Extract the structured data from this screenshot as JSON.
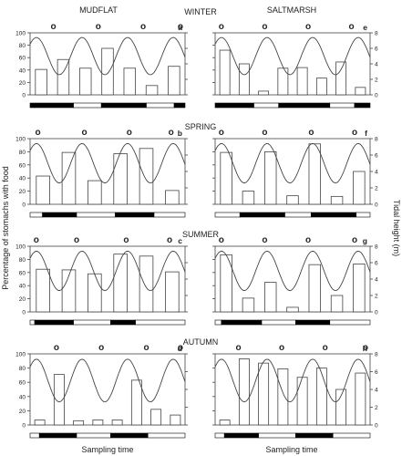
{
  "figure": {
    "column_titles": [
      "MUDFLAT",
      "SALTMARSH"
    ],
    "season_titles": [
      "WINTER",
      "SPRING",
      "SUMMER",
      "AUTUMN"
    ],
    "ylabel_left": "Percentage of stomachs with food",
    "ylabel_right": "Tidal height (m)",
    "xlabel": "Sampling time",
    "marker_symbol": "o",
    "colors": {
      "bar_fill": "#ffffff",
      "stroke": "#444444",
      "night_band": "#000000",
      "day_band": "#ffffff"
    }
  },
  "chart_data": [
    {
      "type": "bar",
      "panel": "a",
      "habitat": "MUDFLAT",
      "season": "WINTER",
      "values": [
        41,
        57,
        43,
        75,
        43,
        15,
        46
      ],
      "ylim": [
        0,
        100
      ],
      "yticks": [
        0,
        20,
        40,
        60,
        80,
        100
      ],
      "tide_ylim": [
        0,
        8
      ],
      "tide_yticks": [
        0,
        2,
        4,
        6,
        8
      ],
      "tide_curve": {
        "cycles": 3.4,
        "phase": 0.14,
        "low_m": 2.6,
        "high_m": 7.4
      },
      "marker_positions": [
        0.15,
        0.44,
        0.73,
        0.97
      ],
      "light_dark_bar": [
        [
          0,
          0.28,
          "dark"
        ],
        [
          0.28,
          0.46,
          "light"
        ],
        [
          0.46,
          0.75,
          "dark"
        ],
        [
          0.75,
          0.93,
          "light"
        ],
        [
          0.93,
          1,
          "dark"
        ]
      ],
      "show_left_ticks": true,
      "show_right_ticks": false
    },
    {
      "type": "bar",
      "panel": "e",
      "habitat": "SALTMARSH",
      "season": "WINTER",
      "values": [
        72,
        50,
        6,
        43,
        44,
        27,
        53,
        12
      ],
      "ylim": [
        0,
        100
      ],
      "yticks": [
        0,
        20,
        40,
        60,
        80,
        100
      ],
      "tide_ylim": [
        0,
        8
      ],
      "tide_yticks": [
        0,
        2,
        4,
        6,
        8
      ],
      "tide_curve": {
        "cycles": 3.4,
        "phase": 0.14,
        "low_m": 2.6,
        "high_m": 7.4
      },
      "marker_positions": [
        0.04,
        0.32,
        0.6,
        0.88
      ],
      "light_dark_bar": [
        [
          0,
          0.25,
          "dark"
        ],
        [
          0.25,
          0.41,
          "light"
        ],
        [
          0.41,
          0.74,
          "dark"
        ],
        [
          0.74,
          0.9,
          "light"
        ],
        [
          0.9,
          1,
          "dark"
        ]
      ],
      "show_left_ticks": false,
      "show_right_ticks": true
    },
    {
      "type": "bar",
      "panel": "b",
      "habitat": "MUDFLAT",
      "season": "SPRING",
      "values": [
        43,
        79,
        36,
        77,
        85,
        21
      ],
      "ylim": [
        0,
        100
      ],
      "yticks": [
        0,
        20,
        40,
        60,
        80,
        100
      ],
      "tide_ylim": [
        0,
        8
      ],
      "tide_yticks": [
        0,
        2,
        4,
        6,
        8
      ],
      "tide_curve": {
        "cycles": 3.4,
        "phase": 0.14,
        "low_m": 2.6,
        "high_m": 7.4
      },
      "marker_positions": [
        0.05,
        0.35,
        0.64,
        0.91
      ],
      "light_dark_bar": [
        [
          0,
          0.08,
          "light"
        ],
        [
          0.08,
          0.3,
          "dark"
        ],
        [
          0.3,
          0.55,
          "light"
        ],
        [
          0.55,
          0.8,
          "dark"
        ],
        [
          0.8,
          1,
          "light"
        ]
      ],
      "show_left_ticks": true,
      "show_right_ticks": false
    },
    {
      "type": "bar",
      "panel": "f",
      "habitat": "SALTMARSH",
      "season": "SPRING",
      "values": [
        79,
        20,
        80,
        13,
        92,
        12,
        50
      ],
      "ylim": [
        0,
        100
      ],
      "yticks": [
        0,
        20,
        40,
        60,
        80,
        100
      ],
      "tide_ylim": [
        0,
        8
      ],
      "tide_yticks": [
        0,
        2,
        4,
        6,
        8
      ],
      "tide_curve": {
        "cycles": 3.4,
        "phase": 0.14,
        "low_m": 2.6,
        "high_m": 7.4
      },
      "marker_positions": [
        0.04,
        0.32,
        0.62,
        0.9
      ],
      "light_dark_bar": [
        [
          0,
          0.16,
          "light"
        ],
        [
          0.16,
          0.45,
          "dark"
        ],
        [
          0.45,
          0.62,
          "light"
        ],
        [
          0.62,
          0.91,
          "dark"
        ],
        [
          0.91,
          1,
          "light"
        ]
      ],
      "show_left_ticks": false,
      "show_right_ticks": true
    },
    {
      "type": "bar",
      "panel": "c",
      "habitat": "MUDFLAT",
      "season": "SUMMER",
      "values": [
        65,
        64,
        58,
        88,
        85,
        61
      ],
      "ylim": [
        0,
        100
      ],
      "yticks": [
        0,
        20,
        40,
        60,
        80,
        100
      ],
      "tide_ylim": [
        0,
        8
      ],
      "tide_yticks": [
        0,
        2,
        4,
        6,
        8
      ],
      "tide_curve": {
        "cycles": 3.4,
        "phase": 0.14,
        "low_m": 2.6,
        "high_m": 7.4
      },
      "marker_positions": [
        0.04,
        0.3,
        0.62,
        0.9
      ],
      "light_dark_bar": [
        [
          0,
          0.03,
          "light"
        ],
        [
          0.03,
          0.28,
          "dark"
        ],
        [
          0.28,
          0.52,
          "light"
        ],
        [
          0.52,
          0.68,
          "dark"
        ],
        [
          0.68,
          1,
          "light"
        ]
      ],
      "show_left_ticks": true,
      "show_right_ticks": false
    },
    {
      "type": "bar",
      "panel": "g",
      "habitat": "SALTMARSH",
      "season": "SUMMER",
      "values": [
        87,
        21,
        45,
        7,
        72,
        25,
        73
      ],
      "ylim": [
        0,
        100
      ],
      "yticks": [
        0,
        20,
        40,
        60,
        80,
        100
      ],
      "tide_ylim": [
        0,
        8
      ],
      "tide_yticks": [
        0,
        2,
        4,
        6,
        8
      ],
      "tide_curve": {
        "cycles": 3.4,
        "phase": 0.14,
        "low_m": 2.6,
        "high_m": 7.4
      },
      "marker_positions": [
        0.04,
        0.32,
        0.6,
        0.9
      ],
      "light_dark_bar": [
        [
          0,
          0.04,
          "light"
        ],
        [
          0.04,
          0.3,
          "dark"
        ],
        [
          0.3,
          0.52,
          "light"
        ],
        [
          0.52,
          0.74,
          "dark"
        ],
        [
          0.74,
          1,
          "light"
        ]
      ],
      "show_left_ticks": false,
      "show_right_ticks": true
    },
    {
      "type": "bar",
      "panel": "d",
      "habitat": "MUDFLAT",
      "season": "AUTUMN",
      "values": [
        7,
        71,
        6,
        7,
        7,
        63,
        22,
        14
      ],
      "ylim": [
        0,
        100
      ],
      "yticks": [
        0,
        20,
        40,
        60,
        80,
        100
      ],
      "tide_ylim": [
        0,
        8
      ],
      "tide_yticks": [
        0,
        2,
        4,
        6,
        8
      ],
      "tide_curve": {
        "cycles": 3.4,
        "phase": 0.14,
        "low_m": 2.6,
        "high_m": 7.4
      },
      "marker_positions": [
        0.17,
        0.46,
        0.75,
        0.97
      ],
      "light_dark_bar": [
        [
          0,
          0.06,
          "light"
        ],
        [
          0.06,
          0.3,
          "dark"
        ],
        [
          0.3,
          0.52,
          "light"
        ],
        [
          0.52,
          0.76,
          "dark"
        ],
        [
          0.76,
          1,
          "light"
        ]
      ],
      "show_left_ticks": true,
      "show_right_ticks": false
    },
    {
      "type": "bar",
      "panel": "h",
      "habitat": "SALTMARSH",
      "season": "AUTUMN",
      "values": [
        7,
        93,
        87,
        79,
        67,
        80,
        50,
        73
      ],
      "ylim": [
        0,
        100
      ],
      "yticks": [
        0,
        20,
        40,
        60,
        80,
        100
      ],
      "tide_ylim": [
        0,
        8
      ],
      "tide_yticks": [
        0,
        2,
        4,
        6,
        8
      ],
      "tide_curve": {
        "cycles": 3.4,
        "phase": 0.14,
        "low_m": 2.6,
        "high_m": 7.4
      },
      "marker_positions": [
        0.15,
        0.43,
        0.71,
        0.97
      ],
      "light_dark_bar": [
        [
          0,
          0.06,
          "light"
        ],
        [
          0.06,
          0.28,
          "dark"
        ],
        [
          0.28,
          0.52,
          "light"
        ],
        [
          0.52,
          0.76,
          "dark"
        ],
        [
          0.76,
          1,
          "light"
        ]
      ],
      "show_left_ticks": false,
      "show_right_ticks": true
    }
  ]
}
